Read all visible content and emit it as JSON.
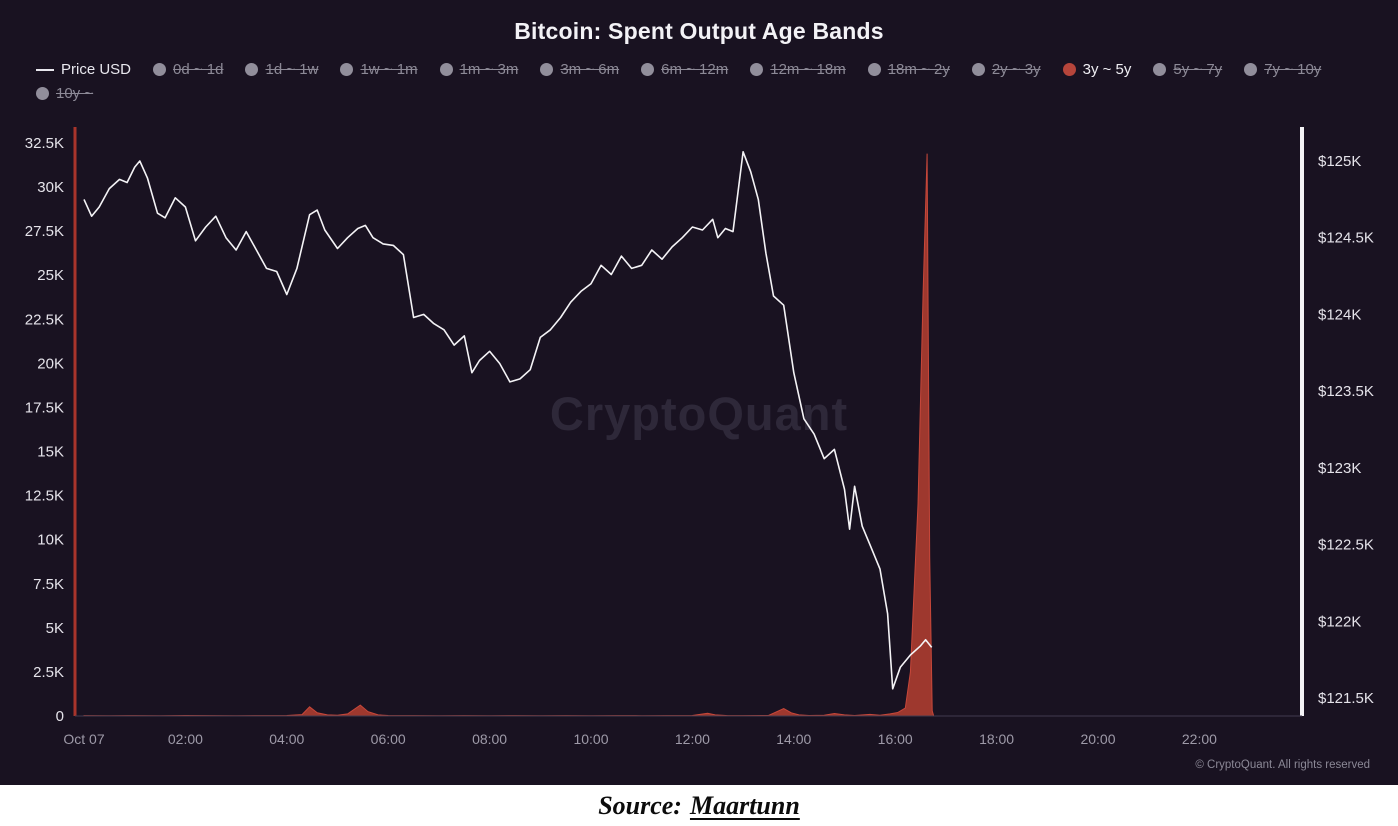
{
  "title": "Bitcoin: Spent Output Age Bands",
  "watermark": "CryptoQuant",
  "copyright": "© CryptoQuant. All rights reserved",
  "source": {
    "label": "Source:",
    "link_text": "Maartunn"
  },
  "legend": {
    "price": {
      "label": "Price USD",
      "color": "#e8e7ee"
    },
    "inactive_dot_color": "#918e9b",
    "active_dot_color": "#b6453b",
    "bands": [
      {
        "label": "0d ~ 1d",
        "active": false
      },
      {
        "label": "1d ~ 1w",
        "active": false
      },
      {
        "label": "1w ~ 1m",
        "active": false
      },
      {
        "label": "1m ~ 3m",
        "active": false
      },
      {
        "label": "3m ~ 6m",
        "active": false
      },
      {
        "label": "6m ~ 12m",
        "active": false
      },
      {
        "label": "12m ~ 18m",
        "active": false
      },
      {
        "label": "18m ~ 2y",
        "active": false
      },
      {
        "label": "2y ~ 3y",
        "active": false
      },
      {
        "label": "3y ~ 5y",
        "active": true
      },
      {
        "label": "5y ~ 7y",
        "active": false
      },
      {
        "label": "7y ~ 10y",
        "active": false
      },
      {
        "label": "10y ~",
        "active": false
      }
    ]
  },
  "chart_data": {
    "type": "line+area",
    "title": "Bitcoin: Spent Output Age Bands",
    "x_axis": {
      "tick_labels": [
        "Oct 07",
        "02:00",
        "04:00",
        "06:00",
        "08:00",
        "10:00",
        "12:00",
        "14:00",
        "16:00",
        "18:00",
        "20:00",
        "22:00"
      ],
      "tick_hours": [
        0,
        2,
        4,
        6,
        8,
        10,
        12,
        14,
        16,
        18,
        20,
        22
      ]
    },
    "left_axis": {
      "tick_labels": [
        "0",
        "2.5K",
        "5K",
        "7.5K",
        "10K",
        "12.5K",
        "15K",
        "17.5K",
        "20K",
        "22.5K",
        "25K",
        "27.5K",
        "30K",
        "32.5K"
      ],
      "tick_values": [
        0,
        2500,
        5000,
        7500,
        10000,
        12500,
        15000,
        17500,
        20000,
        22500,
        25000,
        27500,
        30000,
        32500
      ]
    },
    "right_axis": {
      "tick_labels": [
        "$121.5K",
        "$122K",
        "$122.5K",
        "$123K",
        "$123.5K",
        "$124K",
        "$124.5K",
        "$125K"
      ],
      "tick_values": [
        121500,
        122000,
        122500,
        123000,
        123500,
        124000,
        124500,
        125000
      ]
    },
    "series": [
      {
        "name": "Price USD",
        "type": "line",
        "axis": "right",
        "color": "#f4f3f6",
        "points": [
          [
            0,
            124750
          ],
          [
            0.15,
            124640
          ],
          [
            0.3,
            124700
          ],
          [
            0.5,
            124820
          ],
          [
            0.7,
            124880
          ],
          [
            0.85,
            124860
          ],
          [
            1.0,
            124960
          ],
          [
            1.1,
            125000
          ],
          [
            1.25,
            124890
          ],
          [
            1.45,
            124660
          ],
          [
            1.6,
            124630
          ],
          [
            1.8,
            124760
          ],
          [
            2.0,
            124700
          ],
          [
            2.2,
            124480
          ],
          [
            2.4,
            124570
          ],
          [
            2.6,
            124640
          ],
          [
            2.8,
            124500
          ],
          [
            3.0,
            124420
          ],
          [
            3.2,
            124540
          ],
          [
            3.4,
            124420
          ],
          [
            3.6,
            124300
          ],
          [
            3.8,
            124280
          ],
          [
            4.0,
            124130
          ],
          [
            4.2,
            124300
          ],
          [
            4.45,
            124650
          ],
          [
            4.6,
            124680
          ],
          [
            4.75,
            124550
          ],
          [
            5.0,
            124430
          ],
          [
            5.2,
            124500
          ],
          [
            5.4,
            124560
          ],
          [
            5.55,
            124580
          ],
          [
            5.7,
            124500
          ],
          [
            5.9,
            124460
          ],
          [
            6.1,
            124450
          ],
          [
            6.3,
            124390
          ],
          [
            6.5,
            123980
          ],
          [
            6.7,
            124000
          ],
          [
            6.9,
            123940
          ],
          [
            7.1,
            123900
          ],
          [
            7.3,
            123800
          ],
          [
            7.5,
            123860
          ],
          [
            7.65,
            123620
          ],
          [
            7.8,
            123700
          ],
          [
            8.0,
            123760
          ],
          [
            8.2,
            123680
          ],
          [
            8.4,
            123560
          ],
          [
            8.6,
            123580
          ],
          [
            8.8,
            123640
          ],
          [
            9.0,
            123850
          ],
          [
            9.2,
            123900
          ],
          [
            9.4,
            123980
          ],
          [
            9.6,
            124080
          ],
          [
            9.8,
            124150
          ],
          [
            10.0,
            124200
          ],
          [
            10.2,
            124320
          ],
          [
            10.4,
            124260
          ],
          [
            10.6,
            124380
          ],
          [
            10.8,
            124300
          ],
          [
            11.0,
            124320
          ],
          [
            11.2,
            124420
          ],
          [
            11.4,
            124360
          ],
          [
            11.6,
            124440
          ],
          [
            11.8,
            124500
          ],
          [
            12.0,
            124570
          ],
          [
            12.2,
            124550
          ],
          [
            12.4,
            124620
          ],
          [
            12.5,
            124500
          ],
          [
            12.65,
            124560
          ],
          [
            12.8,
            124540
          ],
          [
            13.0,
            125060
          ],
          [
            13.15,
            124930
          ],
          [
            13.3,
            124750
          ],
          [
            13.45,
            124400
          ],
          [
            13.6,
            124120
          ],
          [
            13.8,
            124060
          ],
          [
            14.0,
            123620
          ],
          [
            14.2,
            123320
          ],
          [
            14.4,
            123220
          ],
          [
            14.6,
            123060
          ],
          [
            14.8,
            123120
          ],
          [
            15.0,
            122860
          ],
          [
            15.1,
            122600
          ],
          [
            15.2,
            122880
          ],
          [
            15.35,
            122620
          ],
          [
            15.5,
            122500
          ],
          [
            15.7,
            122340
          ],
          [
            15.85,
            122050
          ],
          [
            15.95,
            121560
          ],
          [
            16.1,
            121700
          ],
          [
            16.3,
            121780
          ],
          [
            16.5,
            121840
          ],
          [
            16.6,
            121880
          ],
          [
            16.72,
            121830
          ]
        ]
      },
      {
        "name": "3y ~ 5y",
        "type": "area",
        "axis": "left",
        "color": "#9e382e",
        "stroke": "#c7473a",
        "points": [
          [
            0,
            20
          ],
          [
            0.5,
            15
          ],
          [
            1,
            25
          ],
          [
            1.5,
            15
          ],
          [
            2,
            30
          ],
          [
            2.5,
            20
          ],
          [
            3,
            15
          ],
          [
            3.5,
            25
          ],
          [
            4,
            30
          ],
          [
            4.3,
            80
          ],
          [
            4.45,
            520
          ],
          [
            4.6,
            180
          ],
          [
            4.8,
            60
          ],
          [
            5.0,
            40
          ],
          [
            5.2,
            120
          ],
          [
            5.45,
            620
          ],
          [
            5.6,
            250
          ],
          [
            5.8,
            60
          ],
          [
            6.0,
            30
          ],
          [
            6.5,
            20
          ],
          [
            7.0,
            15
          ],
          [
            7.5,
            20
          ],
          [
            8.0,
            15
          ],
          [
            8.5,
            20
          ],
          [
            9.0,
            15
          ],
          [
            9.5,
            20
          ],
          [
            10.0,
            15
          ],
          [
            10.5,
            20
          ],
          [
            11.0,
            15
          ],
          [
            11.5,
            25
          ],
          [
            12.0,
            30
          ],
          [
            12.3,
            160
          ],
          [
            12.45,
            60
          ],
          [
            12.7,
            25
          ],
          [
            13.0,
            20
          ],
          [
            13.5,
            30
          ],
          [
            13.8,
            420
          ],
          [
            13.95,
            180
          ],
          [
            14.1,
            60
          ],
          [
            14.3,
            30
          ],
          [
            14.6,
            40
          ],
          [
            14.8,
            140
          ],
          [
            15.0,
            60
          ],
          [
            15.2,
            30
          ],
          [
            15.5,
            90
          ],
          [
            15.7,
            40
          ],
          [
            15.9,
            120
          ],
          [
            16.05,
            200
          ],
          [
            16.2,
            450
          ],
          [
            16.3,
            2500
          ],
          [
            16.45,
            12000
          ],
          [
            16.55,
            24000
          ],
          [
            16.63,
            31900
          ],
          [
            16.68,
            9000
          ],
          [
            16.73,
            300
          ],
          [
            16.76,
            0
          ]
        ]
      }
    ]
  }
}
